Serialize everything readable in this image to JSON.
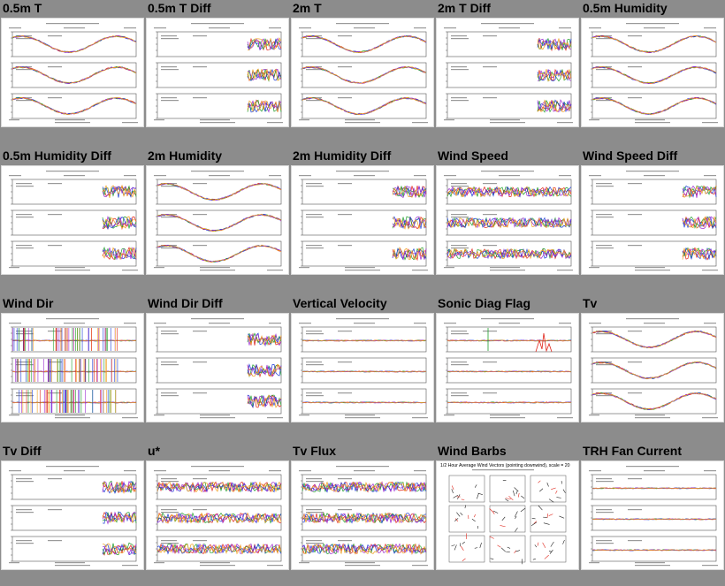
{
  "page": {
    "background": "#8c8c8c",
    "series_colors": [
      "#e0261b",
      "#1f9e2c",
      "#1f3fd6",
      "#9c2ad0",
      "#f0a020",
      "#202020"
    ]
  },
  "tiles": [
    {
      "title": "0.5m T",
      "kind": "triple"
    },
    {
      "title": "0.5m T Diff",
      "kind": "diff"
    },
    {
      "title": "2m T",
      "kind": "triple"
    },
    {
      "title": "2m T Diff",
      "kind": "diff"
    },
    {
      "title": "0.5m Humidity",
      "kind": "triple"
    },
    {
      "title": "0.5m Humidity Diff",
      "kind": "diff"
    },
    {
      "title": "2m Humidity",
      "kind": "triple"
    },
    {
      "title": "2m Humidity Diff",
      "kind": "diff"
    },
    {
      "title": "Wind Speed",
      "kind": "noisy"
    },
    {
      "title": "Wind Speed Diff",
      "kind": "diff"
    },
    {
      "title": "Wind Dir",
      "kind": "winddir"
    },
    {
      "title": "Wind Dir Diff",
      "kind": "diff"
    },
    {
      "title": "Vertical Velocity",
      "kind": "flat"
    },
    {
      "title": "Sonic Diag Flag",
      "kind": "flag"
    },
    {
      "title": "Tv",
      "kind": "triple"
    },
    {
      "title": "Tv Diff",
      "kind": "diff"
    },
    {
      "title": "u*",
      "kind": "noisy"
    },
    {
      "title": "Tv Flux",
      "kind": "noisy"
    },
    {
      "title": "Wind Barbs",
      "kind": "barbs",
      "heading": "1/2 Hour Average Wind Vectors (pointing downwind), scale = 20"
    },
    {
      "title": "TRH Fan Current",
      "kind": "flat"
    }
  ],
  "chart_data": {
    "type": "image-grid",
    "description_source": "20 thumbnail time-series plots, each with 3 stacked panels",
    "panels_per_tile": 3
  }
}
